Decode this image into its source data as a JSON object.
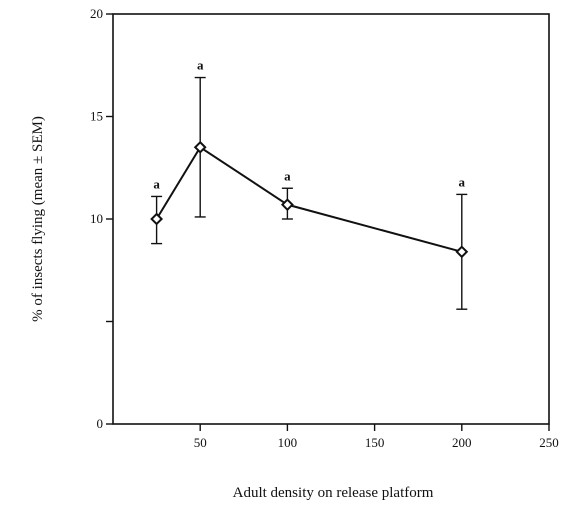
{
  "chart_data": {
    "type": "line",
    "xlabel": "Adult density on release platform",
    "ylabel": "% of insects flying (mean ± SEM)",
    "xlim": [
      0,
      250
    ],
    "ylim": [
      0,
      20
    ],
    "x_ticks": [
      {
        "value": 50,
        "label": "50"
      },
      {
        "value": 100,
        "label": "100"
      },
      {
        "value": 150,
        "label": "150"
      },
      {
        "value": 200,
        "label": "200"
      },
      {
        "value": 250,
        "label": "250"
      }
    ],
    "y_ticks": [
      {
        "value": 0,
        "label": "0"
      },
      {
        "value": 5,
        "label": ""
      },
      {
        "value": 10,
        "label": "10"
      },
      {
        "value": 15,
        "label": "15"
      },
      {
        "value": 20,
        "label": "20"
      }
    ],
    "grid": false,
    "marker": "diamond",
    "series": [
      {
        "points": [
          {
            "x": 25,
            "y": 10.0,
            "err_low": 8.8,
            "err_high": 11.1,
            "label": "a"
          },
          {
            "x": 50,
            "y": 13.5,
            "err_low": 10.1,
            "err_high": 16.9,
            "label": "a"
          },
          {
            "x": 100,
            "y": 10.7,
            "err_low": 10.0,
            "err_high": 11.5,
            "label": "a"
          },
          {
            "x": 200,
            "y": 8.4,
            "err_low": 5.6,
            "err_high": 11.2,
            "label": "a"
          }
        ]
      }
    ]
  }
}
